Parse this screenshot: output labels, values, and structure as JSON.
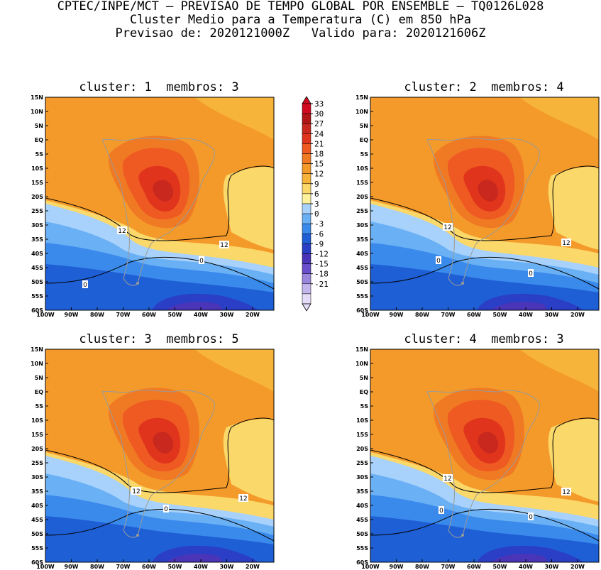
{
  "header": {
    "line1": "CPTEC/INPE/MCT – PREVISAO DE TEMPO GLOBAL POR ENSEMBLE – TQ0126L028",
    "line2": "Cluster Medio para a Temperatura (C) em 850 hPa",
    "line3": "Previsao de: 2020121000Z   Valido para: 2020121606Z"
  },
  "panels": [
    {
      "title": "cluster: 1  membros: 3"
    },
    {
      "title": "cluster: 2  membros: 4"
    },
    {
      "title": "cluster: 3  membros: 5"
    },
    {
      "title": "cluster: 4  membros: 3"
    }
  ],
  "axes": {
    "lat_labels": [
      "15N",
      "10N",
      "5N",
      "EQ",
      "5S",
      "10S",
      "15S",
      "20S",
      "25S",
      "30S",
      "35S",
      "40S",
      "45S",
      "50S",
      "55S",
      "60S"
    ],
    "lon_labels": [
      "100W",
      "90W",
      "80W",
      "70W",
      "60W",
      "50W",
      "40W",
      "30W",
      "20W"
    ]
  },
  "colorbar": {
    "labels": [
      "33",
      "30",
      "27",
      "24",
      "21",
      "18",
      "15",
      "12",
      "9",
      "6",
      "3",
      "0",
      "-3",
      "-6",
      "-9",
      "-12",
      "-15",
      "-18",
      "-21"
    ],
    "colors": [
      "#d10a20",
      "#b01616",
      "#c8281e",
      "#e0351c",
      "#ee5a22",
      "#f07a24",
      "#f49a2a",
      "#f7b43a",
      "#fbd86a",
      "#fef29c",
      "#a8d2fb",
      "#6ab0f5",
      "#3a8aec",
      "#1f5fd5",
      "#2a3ec6",
      "#4a35b8",
      "#6a4fcc",
      "#9a86dd",
      "#c3b6ec",
      "#e4dcf7"
    ]
  },
  "contour_labels": {
    "twelve": "12",
    "zero": "0"
  }
}
